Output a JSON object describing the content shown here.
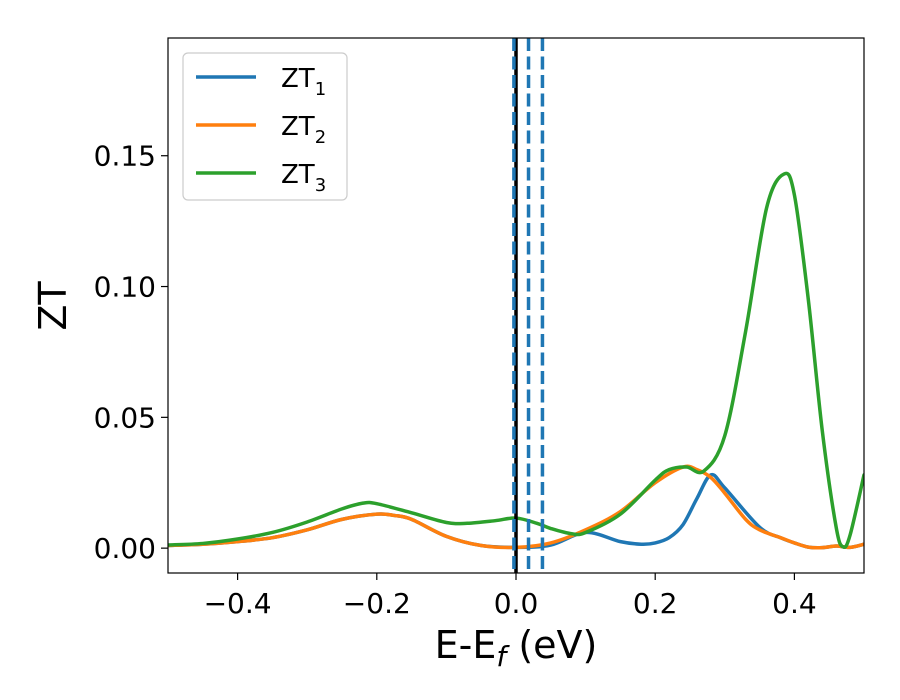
{
  "chart_data": {
    "type": "line",
    "xlabel": "E-E",
    "xlabel_sub": "f",
    "xlabel_unit": " (eV)",
    "ylabel": "ZT",
    "xlim": [
      -0.5,
      0.5
    ],
    "ylim": [
      -0.0095,
      0.195
    ],
    "xticks": [
      -0.4,
      -0.2,
      0.0,
      0.2,
      0.4
    ],
    "xtick_labels": [
      "−0.4",
      "−0.2",
      "0.0",
      "0.2",
      "0.4"
    ],
    "yticks": [
      0.0,
      0.05,
      0.1,
      0.15
    ],
    "ytick_labels": [
      "0.00",
      "0.05",
      "0.10",
      "0.15"
    ],
    "grid": false,
    "legend_position": "top-left",
    "vlines": [
      {
        "x": 0.0,
        "color": "#000000",
        "style": "solid"
      },
      {
        "x": -0.003,
        "color": "#1f77b4",
        "style": "dashed"
      },
      {
        "x": 0.018,
        "color": "#1f77b4",
        "style": "dashed"
      },
      {
        "x": 0.038,
        "color": "#1f77b4",
        "style": "dashed"
      }
    ],
    "series": [
      {
        "name": "ZT",
        "name_sub": "1",
        "color": "#1f77b4",
        "x": [
          -0.5,
          -0.45,
          -0.4,
          -0.35,
          -0.3,
          -0.25,
          -0.2,
          -0.175,
          -0.15,
          -0.1,
          -0.05,
          0.0,
          0.05,
          0.1,
          0.15,
          0.18,
          0.2,
          0.22,
          0.24,
          0.26,
          0.28,
          0.3,
          0.35,
          0.38,
          0.4,
          0.42,
          0.44,
          0.46,
          0.48,
          0.5
        ],
        "y": [
          0.001,
          0.0015,
          0.0025,
          0.004,
          0.007,
          0.011,
          0.013,
          0.0125,
          0.011,
          0.0045,
          0.001,
          0.0003,
          0.0012,
          0.006,
          0.0025,
          0.0015,
          0.002,
          0.004,
          0.009,
          0.019,
          0.028,
          0.023,
          0.008,
          0.004,
          0.002,
          0.0004,
          0.0002,
          0.0008,
          0.0003,
          0.0015
        ]
      },
      {
        "name": "ZT",
        "name_sub": "2",
        "color": "#ff7f0e",
        "x": [
          -0.5,
          -0.45,
          -0.4,
          -0.35,
          -0.3,
          -0.25,
          -0.2,
          -0.175,
          -0.15,
          -0.1,
          -0.05,
          0.0,
          0.05,
          0.1,
          0.15,
          0.2,
          0.24,
          0.26,
          0.28,
          0.3,
          0.33,
          0.35,
          0.38,
          0.4,
          0.42,
          0.44,
          0.46,
          0.48,
          0.5
        ],
        "y": [
          0.001,
          0.0015,
          0.0025,
          0.004,
          0.007,
          0.011,
          0.013,
          0.0125,
          0.011,
          0.0045,
          0.001,
          0.0003,
          0.002,
          0.007,
          0.014,
          0.025,
          0.031,
          0.03,
          0.027,
          0.021,
          0.011,
          0.007,
          0.004,
          0.002,
          0.0004,
          0.0002,
          0.0008,
          0.0003,
          0.0015
        ]
      },
      {
        "name": "ZT",
        "name_sub": "3",
        "color": "#2ca02c",
        "x": [
          -0.5,
          -0.45,
          -0.4,
          -0.35,
          -0.3,
          -0.25,
          -0.22,
          -0.2,
          -0.15,
          -0.1,
          -0.07,
          -0.03,
          0.0,
          0.03,
          0.05,
          0.08,
          0.1,
          0.15,
          0.2,
          0.22,
          0.245,
          0.27,
          0.3,
          0.33,
          0.36,
          0.385,
          0.4,
          0.42,
          0.44,
          0.46,
          0.47,
          0.48,
          0.5
        ],
        "y": [
          0.0012,
          0.0018,
          0.0035,
          0.006,
          0.01,
          0.015,
          0.0172,
          0.017,
          0.0135,
          0.0098,
          0.0095,
          0.0105,
          0.0115,
          0.0095,
          0.0075,
          0.0055,
          0.006,
          0.013,
          0.026,
          0.03,
          0.031,
          0.0295,
          0.043,
          0.083,
          0.13,
          0.143,
          0.135,
          0.095,
          0.045,
          0.008,
          0.0005,
          0.005,
          0.028
        ]
      }
    ]
  }
}
